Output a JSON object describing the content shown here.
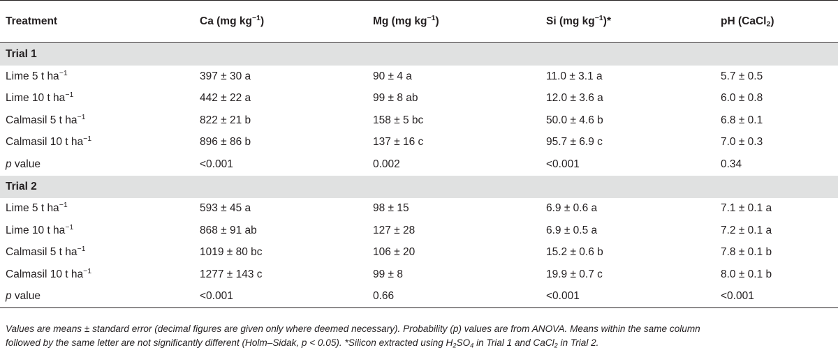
{
  "header": {
    "treatment": "Treatment",
    "ca_base": "Ca (mg kg",
    "ca_exp": "−1",
    "ca_tail": ")",
    "mg_base": "Mg (mg kg",
    "mg_exp": "−1",
    "mg_tail": ")",
    "si_base": "Si (mg kg",
    "si_exp": "−1",
    "si_tail": ")*",
    "ph_base": "pH (CaCl",
    "ph_sub": "2",
    "ph_tail": ")"
  },
  "trial1": {
    "title": "Trial 1",
    "rows": [
      {
        "treat": "Lime 5 t ha",
        "exp": "−1",
        "ca": "397 ± 30 a",
        "mg": "90 ± 4 a",
        "si": "11.0 ± 3.1 a",
        "ph": "5.7 ± 0.5"
      },
      {
        "treat": "Lime 10 t ha",
        "exp": "−1",
        "ca": "442 ± 22 a",
        "mg": "99 ± 8 ab",
        "si": "12.0 ± 3.6 a",
        "ph": "6.0 ± 0.8"
      },
      {
        "treat": "Calmasil 5 t ha",
        "exp": "−1",
        "ca": "822 ± 21 b",
        "mg": "158 ± 5 bc",
        "si": "50.0 ± 4.6 b",
        "ph": "6.8 ± 0.1"
      },
      {
        "treat": "Calmasil 10 t ha",
        "exp": "−1",
        "ca": "896 ± 86 b",
        "mg": "137 ± 16 c",
        "si": "95.7 ± 6.9 c",
        "ph": "7.0 ± 0.3"
      }
    ],
    "p": {
      "label_p": "p",
      "label_rest": " value",
      "ca": "<0.001",
      "mg": "0.002",
      "si": "<0.001",
      "ph": "0.34"
    }
  },
  "trial2": {
    "title": "Trial 2",
    "rows": [
      {
        "treat": "Lime 5 t ha",
        "exp": "−1",
        "ca": "593 ± 45 a",
        "mg": "98 ± 15",
        "si": "6.9 ± 0.6 a",
        "ph": "7.1 ± 0.1 a"
      },
      {
        "treat": "Lime 10 t ha",
        "exp": "−1",
        "ca": "868 ± 91 ab",
        "mg": "127 ± 28",
        "si": "6.9 ± 0.5 a",
        "ph": "7.2 ± 0.1 a"
      },
      {
        "treat": "Calmasil 5 t ha",
        "exp": "−1",
        "ca": "1019 ± 80 bc",
        "mg": "106 ± 20",
        "si": "15.2 ± 0.6 b",
        "ph": "7.8 ± 0.1 b"
      },
      {
        "treat": "Calmasil 10 t ha",
        "exp": "−1",
        "ca": "1277 ± 143 c",
        "mg": "99 ± 8",
        "si": "19.9 ± 0.7 c",
        "ph": "8.0 ± 0.1 b"
      }
    ],
    "p": {
      "label_p": "p",
      "label_rest": " value",
      "ca": "<0.001",
      "mg": "0.66",
      "si": "<0.001",
      "ph": "<0.001"
    }
  },
  "footnote": {
    "line1": "Values are means ± standard error (decimal figures are given only where deemed necessary). Probability (p) values are from ANOVA. Means within the same column",
    "line2_a": "followed by the same letter are not significantly different (Holm–Sidak, p < 0.05). *Silicon extracted using H",
    "line2_sub1": "2",
    "line2_b": "SO",
    "line2_sub2": "4",
    "line2_c": " in Trial 1 and CaCl",
    "line2_sub3": "2",
    "line2_d": " in Trial 2."
  }
}
